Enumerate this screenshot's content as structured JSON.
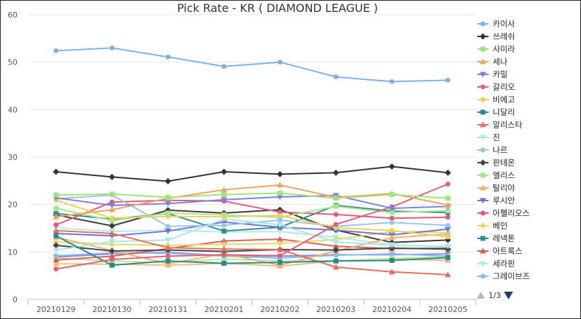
{
  "chart_data": {
    "type": "line",
    "title": "Pick Rate - KR ( DIAMOND LEAGUE )",
    "xlabel": "",
    "ylabel": "",
    "categories": [
      "20210129",
      "20210130",
      "20210131",
      "20210201",
      "20210202",
      "20210203",
      "20210204",
      "20210205"
    ],
    "ylim": [
      0,
      60
    ],
    "yticks": [
      0,
      10,
      20,
      30,
      40,
      50,
      60
    ],
    "grid": true,
    "legend_position": "right",
    "series": [
      {
        "name": "카이사",
        "color": "#7fb2e0",
        "marker": "circle",
        "values": [
          52.4,
          53.0,
          51.1,
          49.1,
          50.0,
          46.9,
          45.9,
          46.2
        ]
      },
      {
        "name": "쓰레쉬",
        "color": "#333333",
        "marker": "diamond",
        "values": [
          26.9,
          25.8,
          24.9,
          26.9,
          26.4,
          26.7,
          28.0,
          26.7
        ]
      },
      {
        "name": "사미라",
        "color": "#9ee37d",
        "marker": "square",
        "values": [
          22.0,
          22.2,
          21.5,
          22.1,
          22.4,
          21.3,
          22.1,
          21.3
        ]
      },
      {
        "name": "세나",
        "color": "#f0a35e",
        "marker": "triangle",
        "values": [
          17.4,
          18.9,
          21.3,
          23.1,
          24.1,
          21.5,
          22.3,
          19.9
        ]
      },
      {
        "name": "카밀",
        "color": "#7f7fe0",
        "marker": "triangle-down",
        "values": [
          21.4,
          19.8,
          20.2,
          21.0,
          21.6,
          21.9,
          19.2,
          19.6
        ]
      },
      {
        "name": "갈리오",
        "color": "#e0607a",
        "marker": "circle",
        "values": [
          6.4,
          8.4,
          9.1,
          9.4,
          9.2,
          15.8,
          19.5,
          24.3
        ]
      },
      {
        "name": "비에고",
        "color": "#e8d25a",
        "marker": "diamond",
        "values": [
          20.9,
          17.1,
          17.5,
          17.4,
          17.7,
          15.1,
          14.5,
          13.2
        ]
      },
      {
        "name": "니달리",
        "color": "#2a8a8a",
        "marker": "square",
        "values": [
          13.4,
          7.2,
          8.1,
          7.6,
          7.8,
          8.1,
          8.2,
          8.8
        ]
      },
      {
        "name": "알리스타",
        "color": "#e07060",
        "marker": "triangle",
        "values": [
          14.5,
          13.9,
          10.9,
          10.6,
          10.5,
          6.8,
          5.8,
          5.2
        ]
      },
      {
        "name": "진",
        "color": "#a8e8e8",
        "marker": "triangle-down",
        "values": [
          10.4,
          12.2,
          12.5,
          16.9,
          15.7,
          12.1,
          11.4,
          11.2
        ]
      },
      {
        "name": "나르",
        "color": "#9cc4e4",
        "marker": "circle",
        "values": [
          21.2,
          22.0,
          15.4,
          15.6,
          16.7,
          15.4,
          16.2,
          15.6
        ]
      },
      {
        "name": "판테온",
        "color": "#444444",
        "marker": "diamond",
        "values": [
          11.4,
          10.2,
          10.4,
          10.1,
          10.5,
          10.4,
          10.8,
          10.6
        ]
      },
      {
        "name": "엘리스",
        "color": "#a6e68c",
        "marker": "square",
        "values": [
          19.2,
          16.6,
          18.2,
          17.8,
          17.3,
          19.6,
          18.3,
          18.7
        ]
      },
      {
        "name": "탈리야",
        "color": "#f0b070",
        "marker": "triangle",
        "values": [
          13.1,
          10.3,
          7.5,
          9.6,
          7.2,
          10.2,
          13.0,
          13.8
        ]
      },
      {
        "name": "루시안",
        "color": "#7070d8",
        "marker": "triangle-down",
        "values": [
          13.9,
          13.4,
          14.4,
          16.3,
          15.2,
          14.6,
          13.6,
          14.8
        ]
      },
      {
        "name": "아펠리오스",
        "color": "#e05a78",
        "marker": "circle",
        "values": [
          15.7,
          20.5,
          20.9,
          20.7,
          18.4,
          17.9,
          17.1,
          17.3
        ]
      },
      {
        "name": "베인",
        "color": "#e6d86a",
        "marker": "diamond",
        "values": [
          12.1,
          11.6,
          11.4,
          11.6,
          11.8,
          12.6,
          14.3,
          14.1
        ]
      },
      {
        "name": "레넥톤",
        "color": "#2f8f8f",
        "marker": "square",
        "values": [
          18.1,
          16.9,
          18.1,
          14.4,
          15.2,
          19.8,
          18.6,
          18.3
        ]
      },
      {
        "name": "아트록스",
        "color": "#d9605a",
        "marker": "triangle",
        "values": [
          8.3,
          9.1,
          10.7,
          12.3,
          12.7,
          11.2,
          10.7,
          10.8
        ]
      },
      {
        "name": "세라핀",
        "color": "#b0eaea",
        "marker": "triangle-down",
        "values": [
          15.1,
          14.3,
          14.6,
          14.2,
          14.3,
          13.1,
          11.5,
          11.0
        ]
      },
      {
        "name": "그레이브즈",
        "color": "#8cbce6",
        "marker": "circle",
        "values": [
          9.2,
          9.8,
          9.7,
          9.1,
          8.7,
          9.3,
          9.6,
          9.1
        ]
      },
      {
        "color": "#3a3a3a",
        "marker": "diamond",
        "values": [
          17.8,
          15.5,
          18.8,
          18.2,
          18.9,
          14.6,
          12.0,
          12.5
        ]
      },
      {
        "color": "#b2ea9a",
        "marker": "square",
        "values": [
          8.7,
          8.1,
          7.7,
          8.5,
          8.1,
          8.1,
          8.6,
          9.0
        ]
      },
      {
        "color": "#f3bd80",
        "marker": "triangle",
        "values": [
          7.5,
          7.4,
          7.2,
          7.6,
          7.0,
          8.1,
          8.5,
          8.2
        ]
      },
      {
        "color": "#8a8ae0",
        "marker": "triangle-down",
        "values": [
          8.9,
          9.6,
          9.9,
          9.2,
          9.1,
          9.4,
          9.4,
          9.6
        ]
      }
    ]
  },
  "legend": {
    "page": "1/3"
  },
  "colors": {
    "grid": "#e6e6e6",
    "axis": "#c0c0c0",
    "pager_active": "#1f3b6e",
    "pager_inactive": "#bbbbbb"
  }
}
